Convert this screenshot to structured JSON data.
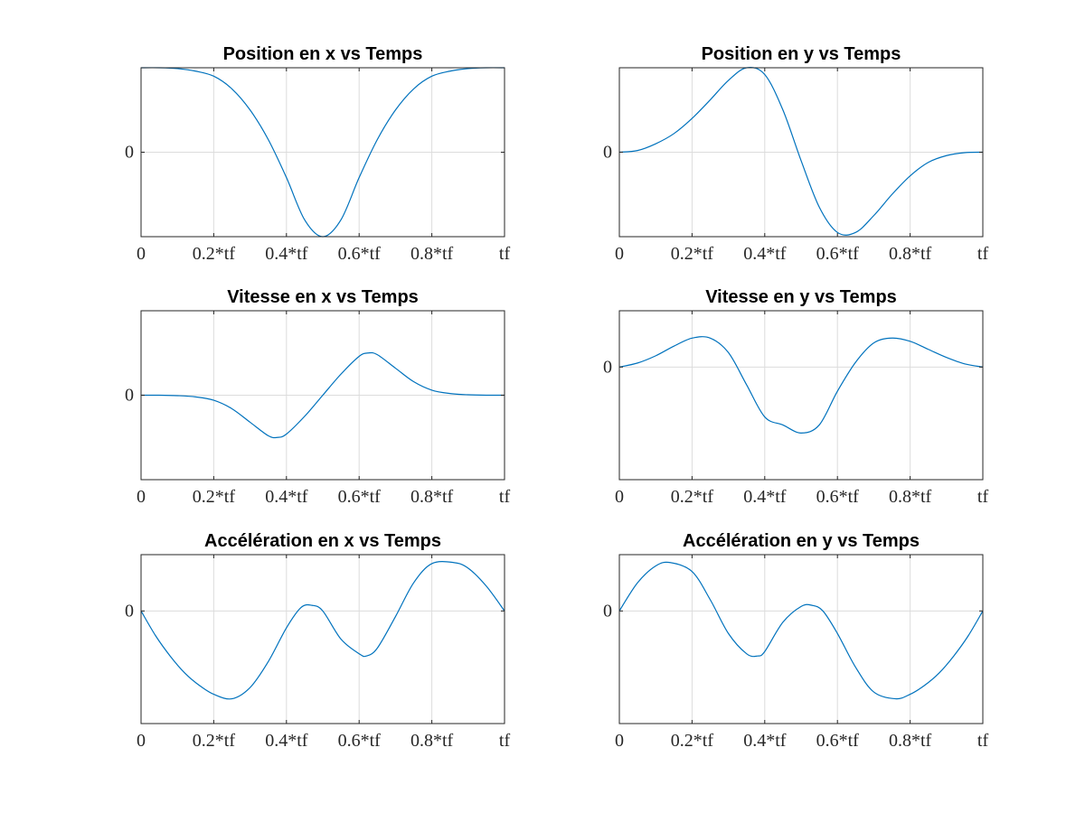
{
  "colors": {
    "line": "#0072BD",
    "background": "#ffffff",
    "axes": "#262626",
    "grid": "#dcdcdc"
  },
  "chart_data": [
    {
      "id": "pos-x",
      "type": "line",
      "title": "Position en x vs Temps",
      "xlabel": "",
      "ylabel": "",
      "xlim": [
        0,
        1
      ],
      "ylim": [
        -1,
        1
      ],
      "xticks": [
        0,
        0.2,
        0.4,
        0.6,
        0.8,
        1
      ],
      "xtick_labels": [
        "0",
        "0.2*tf",
        "0.4*tf",
        "0.6*tf",
        "0.8*tf",
        "tf"
      ],
      "yticks": [
        0
      ],
      "ytick_labels": [
        "0"
      ],
      "grid": true,
      "series": [
        {
          "x": [
            0,
            0.05,
            0.1,
            0.15,
            0.2,
            0.25,
            0.3,
            0.35,
            0.4,
            0.45,
            0.5,
            0.55,
            0.6,
            0.65,
            0.7,
            0.75,
            0.8,
            0.85,
            0.9,
            0.95,
            1
          ],
          "values": [
            1,
            1,
            0.99,
            0.96,
            0.9,
            0.75,
            0.5,
            0.15,
            -0.3,
            -0.8,
            -1,
            -0.8,
            -0.3,
            0.15,
            0.5,
            0.75,
            0.9,
            0.96,
            0.99,
            1,
            1
          ]
        }
      ]
    },
    {
      "id": "pos-y",
      "type": "line",
      "title": "Position en y vs Temps",
      "xlabel": "",
      "ylabel": "",
      "xlim": [
        0,
        1
      ],
      "ylim": [
        -1,
        1
      ],
      "xticks": [
        0,
        0.2,
        0.4,
        0.6,
        0.8,
        1
      ],
      "xtick_labels": [
        "0",
        "0.2*tf",
        "0.4*tf",
        "0.6*tf",
        "0.8*tf",
        "tf"
      ],
      "yticks": [
        0
      ],
      "ytick_labels": [
        "0"
      ],
      "grid": true,
      "series": [
        {
          "x": [
            0,
            0.05,
            0.1,
            0.15,
            0.2,
            0.25,
            0.3,
            0.35,
            0.4,
            0.45,
            0.5,
            0.55,
            0.6,
            0.65,
            0.7,
            0.75,
            0.8,
            0.85,
            0.9,
            0.95,
            1
          ],
          "values": [
            0,
            0.02,
            0.1,
            0.22,
            0.4,
            0.62,
            0.85,
            1,
            0.92,
            0.5,
            -0.1,
            -0.65,
            -0.95,
            -0.95,
            -0.75,
            -0.5,
            -0.28,
            -0.12,
            -0.04,
            -0.005,
            0
          ]
        }
      ]
    },
    {
      "id": "vit-x",
      "type": "line",
      "title": "Vitesse en x vs Temps",
      "xlabel": "",
      "ylabel": "",
      "xlim": [
        0,
        1
      ],
      "ylim": [
        -1,
        1
      ],
      "xticks": [
        0,
        0.2,
        0.4,
        0.6,
        0.8,
        1
      ],
      "xtick_labels": [
        "0",
        "0.2*tf",
        "0.4*tf",
        "0.6*tf",
        "0.8*tf",
        "tf"
      ],
      "yticks": [
        0
      ],
      "ytick_labels": [
        "0"
      ],
      "grid": true,
      "series": [
        {
          "x": [
            0,
            0.05,
            0.1,
            0.15,
            0.2,
            0.25,
            0.3,
            0.35,
            0.375,
            0.4,
            0.45,
            0.5,
            0.55,
            0.6,
            0.625,
            0.65,
            0.7,
            0.75,
            0.8,
            0.85,
            0.9,
            0.95,
            1
          ],
          "values": [
            0,
            0,
            -0.005,
            -0.02,
            -0.06,
            -0.16,
            -0.32,
            -0.48,
            -0.5,
            -0.46,
            -0.25,
            0,
            0.25,
            0.46,
            0.5,
            0.48,
            0.32,
            0.16,
            0.06,
            0.02,
            0.005,
            0,
            0
          ]
        }
      ]
    },
    {
      "id": "vit-y",
      "type": "line",
      "title": "Vitesse en y vs Temps",
      "xlabel": "",
      "ylabel": "",
      "xlim": [
        0,
        1
      ],
      "ylim": [
        -1.4,
        0.7
      ],
      "xticks": [
        0,
        0.2,
        0.4,
        0.6,
        0.8,
        1
      ],
      "xtick_labels": [
        "0",
        "0.2*tf",
        "0.4*tf",
        "0.6*tf",
        "0.8*tf",
        "tf"
      ],
      "yticks": [
        0
      ],
      "ytick_labels": [
        "0"
      ],
      "grid": true,
      "series": [
        {
          "x": [
            0,
            0.05,
            0.1,
            0.15,
            0.2,
            0.25,
            0.3,
            0.35,
            0.4,
            0.45,
            0.5,
            0.55,
            0.6,
            0.65,
            0.7,
            0.75,
            0.8,
            0.85,
            0.9,
            0.95,
            1
          ],
          "values": [
            0,
            0.05,
            0.14,
            0.26,
            0.36,
            0.36,
            0.18,
            -0.22,
            -0.62,
            -0.72,
            -0.82,
            -0.72,
            -0.3,
            0.06,
            0.3,
            0.36,
            0.32,
            0.22,
            0.12,
            0.04,
            0
          ]
        }
      ]
    },
    {
      "id": "acc-x",
      "type": "line",
      "title": "Accélération en x vs Temps",
      "xlabel": "",
      "ylabel": "",
      "xlim": [
        0,
        1
      ],
      "ylim": [
        -1.0,
        0.5
      ],
      "xticks": [
        0,
        0.2,
        0.4,
        0.6,
        0.8,
        1
      ],
      "xtick_labels": [
        "0",
        "0.2*tf",
        "0.4*tf",
        "0.6*tf",
        "0.8*tf",
        "tf"
      ],
      "yticks": [
        0
      ],
      "ytick_labels": [
        "0"
      ],
      "grid": true,
      "series": [
        {
          "x": [
            0,
            0.04,
            0.08,
            0.12,
            0.16,
            0.2,
            0.25,
            0.3,
            0.35,
            0.4,
            0.44,
            0.47,
            0.5,
            0.55,
            0.6,
            0.62,
            0.65,
            0.7,
            0.75,
            0.8,
            0.86,
            0.9,
            0.95,
            1
          ],
          "values": [
            0,
            -0.22,
            -0.4,
            -0.55,
            -0.66,
            -0.74,
            -0.78,
            -0.68,
            -0.45,
            -0.15,
            0.03,
            0.05,
            0,
            -0.25,
            -0.38,
            -0.4,
            -0.33,
            -0.05,
            0.25,
            0.42,
            0.43,
            0.38,
            0.22,
            0
          ]
        }
      ]
    },
    {
      "id": "acc-y",
      "type": "line",
      "title": "Accélération en y vs Temps",
      "xlabel": "",
      "ylabel": "",
      "xlim": [
        0,
        1
      ],
      "ylim": [
        -1.0,
        0.5
      ],
      "xticks": [
        0,
        0.2,
        0.4,
        0.6,
        0.8,
        1
      ],
      "xtick_labels": [
        "0",
        "0.2*tf",
        "0.4*tf",
        "0.6*tf",
        "0.8*tf",
        "tf"
      ],
      "yticks": [
        0
      ],
      "ytick_labels": [
        "0"
      ],
      "grid": true,
      "series": [
        {
          "x": [
            0,
            0.05,
            0.1,
            0.14,
            0.2,
            0.25,
            0.3,
            0.35,
            0.38,
            0.4,
            0.45,
            0.5,
            0.53,
            0.56,
            0.6,
            0.65,
            0.7,
            0.76,
            0.8,
            0.84,
            0.88,
            0.92,
            0.96,
            1
          ],
          "values": [
            0,
            0.25,
            0.4,
            0.43,
            0.35,
            0.1,
            -0.2,
            -0.38,
            -0.4,
            -0.36,
            -0.1,
            0.04,
            0.05,
            0,
            -0.2,
            -0.5,
            -0.72,
            -0.78,
            -0.74,
            -0.66,
            -0.55,
            -0.4,
            -0.22,
            0
          ]
        }
      ]
    }
  ]
}
